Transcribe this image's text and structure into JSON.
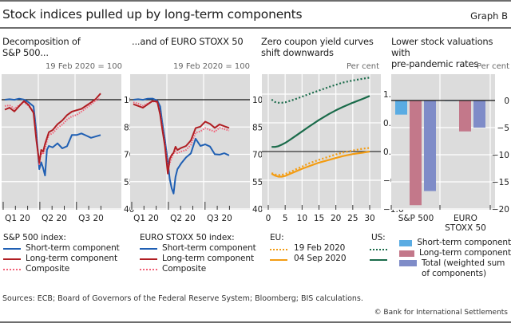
{
  "title": "Stock indices pulled up by long-term components",
  "graph_id": "Graph B",
  "sources": "Sources: ECB; Board of Governors of the Federal Reserve System; Bloomberg; BIS calculations.",
  "copyright": "© Bank for International Settlements",
  "colors": {
    "short": "#1f5fb3",
    "long": "#b01e23",
    "composite": "#f2637a",
    "eu": "#f39c12",
    "us": "#1a6b4a",
    "bar_short": "#5aace3",
    "bar_long": "#c3788a",
    "bar_total": "#7f8cc8",
    "plot_bg": "#dcdcdc"
  },
  "panels": [
    {
      "title": "Decomposition of\nS&P 500...",
      "unit": "19 Feb 2020 = 100"
    },
    {
      "title": "...and of EURO STOXX 50",
      "unit": "19 Feb 2020 = 100"
    },
    {
      "title": "Zero coupon yield curves\nshift downwards",
      "unit": "Per cent"
    },
    {
      "title": "Lower stock valuations with\npre-pandemic rates",
      "unit": "Per cent"
    }
  ],
  "legends": {
    "sp": {
      "heading": "S&P 500 index:",
      "items": [
        "Short-term component",
        "Long-term component",
        "Composite"
      ]
    },
    "es": {
      "heading": "EURO STOXX 50 index:",
      "items": [
        "Short-term component",
        "Long-term component",
        "Composite"
      ]
    },
    "yc": {
      "eu": "EU:",
      "us": "US:",
      "items": [
        "19 Feb 2020",
        "04 Sep 2020"
      ]
    },
    "bars": {
      "items": [
        "Short-term component",
        "Long-term component",
        "Total (weighted sum of components)"
      ]
    }
  },
  "chart_data": [
    {
      "type": "line",
      "title": "Decomposition of S&P 500...",
      "ylabel": "19 Feb 2020 = 100",
      "x_ticks": [
        "Q1 20",
        "Q2 20",
        "Q3 20"
      ],
      "y_ticks": [
        100,
        85,
        70,
        55,
        40
      ],
      "ylim": [
        40,
        104
      ],
      "reference_line": 100,
      "x": [
        0,
        0.05,
        0.1,
        0.15,
        0.2,
        0.25,
        0.3,
        0.33,
        0.36,
        0.38,
        0.4,
        0.42,
        0.44,
        0.46,
        0.5,
        0.55,
        0.6,
        0.65,
        0.7,
        0.75,
        0.8,
        0.85,
        0.9,
        0.95,
        1.0
      ],
      "series": [
        {
          "name": "Short-term component",
          "values": [
            100,
            100,
            99.5,
            100,
            99.5,
            98,
            96,
            82,
            62,
            66,
            63,
            59,
            73,
            75,
            74,
            76,
            73,
            74,
            80,
            80,
            81,
            80,
            79,
            80,
            81
          ]
        },
        {
          "name": "Long-term component",
          "values": [
            94,
            95,
            93,
            96,
            99,
            97,
            93,
            78,
            66,
            73,
            72,
            76,
            79,
            82,
            83,
            86,
            88,
            91,
            93,
            94,
            95,
            97,
            99,
            101,
            104
          ]
        },
        {
          "name": "Composite",
          "values": [
            96,
            96.5,
            95,
            97,
            99,
            97,
            94,
            79,
            65,
            71,
            70,
            73,
            77,
            80,
            81,
            84,
            86,
            89,
            91,
            92,
            94,
            96,
            98,
            100,
            101
          ]
        }
      ]
    },
    {
      "type": "line",
      "title": "...and of EURO STOXX 50",
      "ylabel": "19 Feb 2020 = 100",
      "x_ticks": [
        "Q1 20",
        "Q2 20",
        "Q3 20"
      ],
      "y_ticks": [
        100,
        85,
        70,
        55,
        40
      ],
      "ylim": [
        40,
        104
      ],
      "reference_line": 100,
      "x": [
        0,
        0.05,
        0.1,
        0.15,
        0.2,
        0.25,
        0.28,
        0.3,
        0.33,
        0.36,
        0.38,
        0.4,
        0.42,
        0.44,
        0.46,
        0.5,
        0.55,
        0.6,
        0.65,
        0.7,
        0.75,
        0.8,
        0.85,
        0.9,
        0.95,
        1.0
      ],
      "series": [
        {
          "name": "Short-term component",
          "values": [
            100,
            100,
            99.5,
            100,
            100,
            99,
            96,
            88,
            78,
            66,
            57,
            52,
            49,
            58,
            62,
            65,
            68,
            70,
            78,
            74,
            75,
            74,
            70,
            70,
            71,
            70
          ]
        },
        {
          "name": "Long-term component",
          "values": [
            97,
            96,
            95,
            97,
            99,
            99,
            92,
            85,
            75,
            60,
            68,
            70,
            71,
            74,
            72,
            73,
            74,
            77,
            84,
            85,
            88,
            87,
            85,
            87,
            86,
            85
          ]
        },
        {
          "name": "Composite",
          "values": [
            98,
            97.5,
            96.5,
            98,
            99.5,
            99,
            93,
            86,
            76,
            62,
            65,
            68,
            70,
            71,
            70,
            71,
            72,
            75,
            82,
            83,
            85,
            84,
            83,
            85,
            84,
            83
          ]
        }
      ]
    },
    {
      "type": "line",
      "title": "Zero coupon yield curves shift downwards",
      "ylabel": "Per cent",
      "xlabel": "",
      "x_ticks": [
        0,
        5,
        10,
        15,
        20,
        25,
        30
      ],
      "y_ticks": [
        1.6,
        0.8,
        0.0,
        -0.8,
        -1.6
      ],
      "ylim": [
        -1.6,
        2.0
      ],
      "xlim": [
        0,
        30
      ],
      "reference_line": 0,
      "x": [
        1,
        2,
        3,
        4,
        5,
        6,
        8,
        10,
        12,
        15,
        18,
        20,
        22,
        25,
        28,
        30
      ],
      "series": [
        {
          "name": "EU 19 Feb 2020",
          "values": [
            -0.6,
            -0.64,
            -0.65,
            -0.65,
            -0.62,
            -0.59,
            -0.5,
            -0.42,
            -0.33,
            -0.23,
            -0.14,
            -0.08,
            -0.03,
            0.03,
            0.08,
            0.1
          ]
        },
        {
          "name": "EU 04 Sep 2020",
          "values": [
            -0.62,
            -0.67,
            -0.7,
            -0.7,
            -0.68,
            -0.64,
            -0.56,
            -0.48,
            -0.41,
            -0.31,
            -0.23,
            -0.18,
            -0.13,
            -0.07,
            -0.03,
            0.0
          ]
        },
        {
          "name": "US 19 Feb 2020",
          "values": [
            1.45,
            1.38,
            1.36,
            1.36,
            1.37,
            1.4,
            1.46,
            1.53,
            1.6,
            1.7,
            1.8,
            1.86,
            1.92,
            1.98,
            2.03,
            2.06
          ]
        },
        {
          "name": "US 04 Sep 2020",
          "values": [
            0.13,
            0.13,
            0.15,
            0.19,
            0.24,
            0.3,
            0.43,
            0.56,
            0.69,
            0.88,
            1.05,
            1.15,
            1.24,
            1.36,
            1.47,
            1.55
          ]
        }
      ]
    },
    {
      "type": "bar",
      "title": "Lower stock valuations with pre-pandemic rates",
      "ylabel": "Per cent",
      "categories": [
        "S&P 500",
        "EURO\nSTOXX 50"
      ],
      "y_ticks": [
        0,
        -5,
        -10,
        -15,
        -20
      ],
      "ylim": [
        -20,
        2
      ],
      "series": [
        {
          "name": "Short-term component",
          "values": [
            -2.6,
            -0.1
          ]
        },
        {
          "name": "Long-term component",
          "values": [
            -19.3,
            -5.7
          ]
        },
        {
          "name": "Total (weighted sum of components)",
          "values": [
            -16.7,
            -5.0
          ]
        }
      ]
    }
  ]
}
